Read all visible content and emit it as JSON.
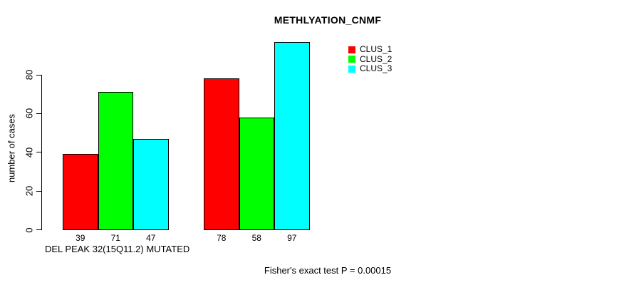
{
  "chart_data": {
    "type": "bar",
    "title": "METHLYATION_CNMF",
    "ylabel": "number of cases",
    "xlabel": "DEL PEAK 32(15Q11.2) MUTATED",
    "footer": "Fisher's exact test P = 0.00015",
    "ylim": [
      0,
      80
    ],
    "yticks": [
      0,
      20,
      40,
      60,
      80
    ],
    "grid": false,
    "legend_position": "top-right",
    "bar_value_labels_shown": true,
    "groups": 2,
    "series": [
      {
        "name": "CLUS_1",
        "color": "#FF0000",
        "values": [
          39,
          78
        ]
      },
      {
        "name": "CLUS_2",
        "color": "#00FF00",
        "values": [
          71,
          58
        ]
      },
      {
        "name": "CLUS_3",
        "color": "#00FFFF",
        "values": [
          47,
          97
        ]
      }
    ]
  }
}
